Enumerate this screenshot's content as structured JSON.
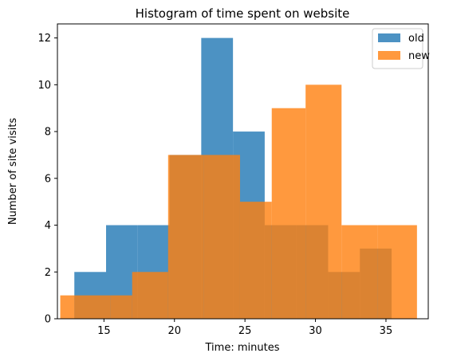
{
  "chart_data": {
    "type": "bar",
    "title": "Histogram of time spent on website",
    "xlabel": "Time: minutes",
    "ylabel": "Number of site visits",
    "xlim": [
      11.7,
      38.0
    ],
    "ylim": [
      0,
      12.6
    ],
    "xticks": [
      15,
      20,
      25,
      30,
      35
    ],
    "yticks": [
      0,
      2,
      4,
      6,
      8,
      10,
      12
    ],
    "legend_position": "upper right",
    "series": [
      {
        "name": "old",
        "color": "#1f77b4",
        "opacity": 0.8,
        "bin_edges": [
          12.9,
          15.15,
          17.4,
          19.65,
          21.9,
          24.15,
          26.4,
          28.65,
          30.9,
          33.15,
          35.4
        ],
        "counts": [
          2,
          4,
          4,
          7,
          12,
          8,
          4,
          4,
          2,
          3
        ]
      },
      {
        "name": "new",
        "color": "#ff7f0e",
        "opacity": 0.8,
        "bin_edges": [
          11.9,
          12.92,
          15.45,
          17.0,
          19.55,
          22.1,
          24.65,
          26.9,
          29.3,
          31.85,
          34.4,
          37.2
        ],
        "counts": [
          1,
          1,
          1,
          2,
          7,
          7,
          5,
          9,
          10,
          4,
          4
        ]
      }
    ]
  }
}
